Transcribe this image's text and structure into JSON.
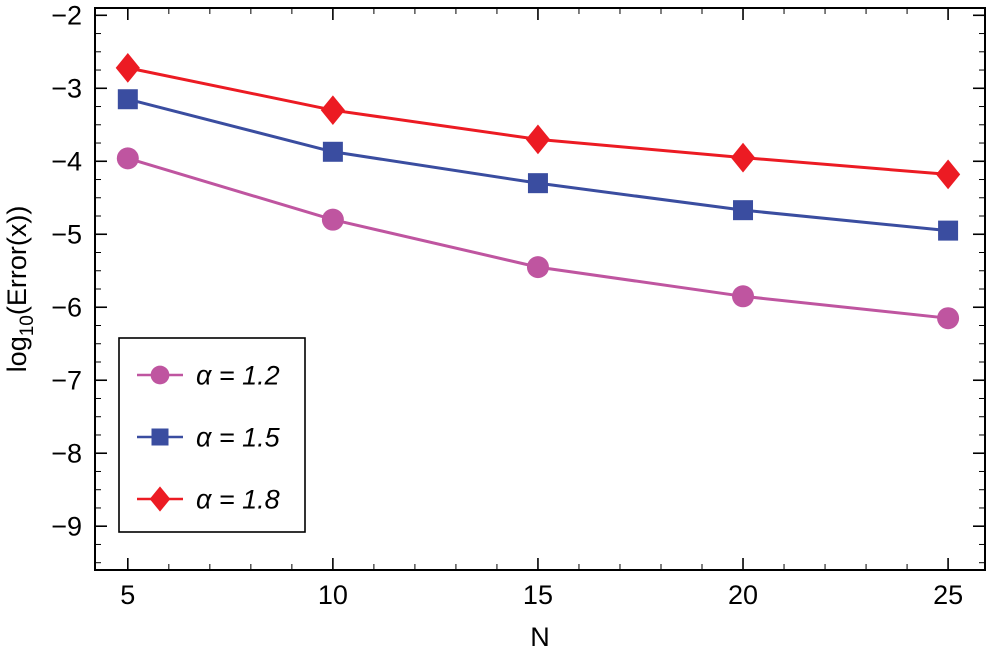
{
  "chart_data": {
    "type": "line",
    "title": "",
    "xlabel": "N",
    "ylabel": "log10(Error(x))",
    "ylabel_rich": {
      "prefix": "log",
      "sub": "10",
      "suffix": "(Error(x))"
    },
    "x": [
      5,
      10,
      15,
      20,
      25
    ],
    "xlim": [
      4.2,
      25.9
    ],
    "ylim": [
      -9.6,
      -1.9
    ],
    "x_major_ticks": [
      5,
      10,
      15,
      20,
      25
    ],
    "x_minor_step": 1,
    "y_major_ticks": [
      -2,
      -3,
      -4,
      -5,
      -6,
      -7,
      -8,
      -9
    ],
    "y_minor_step": 0.25,
    "grid": false,
    "frame": true,
    "background": "#ffffff",
    "axis_color": "#000000",
    "legend_position": "lower-left",
    "series": [
      {
        "name": "α = 1.2",
        "marker": "circle",
        "color": "#bf55a0",
        "values": [
          -3.96,
          -4.8,
          -5.45,
          -5.85,
          -6.15
        ]
      },
      {
        "name": "α = 1.5",
        "marker": "square",
        "color": "#3a4da0",
        "values": [
          -3.15,
          -3.87,
          -4.3,
          -4.67,
          -4.95
        ]
      },
      {
        "name": "α = 1.8",
        "marker": "diamond",
        "color": "#ec1b23",
        "values": [
          -2.72,
          -3.3,
          -3.7,
          -3.95,
          -4.18
        ]
      }
    ]
  }
}
